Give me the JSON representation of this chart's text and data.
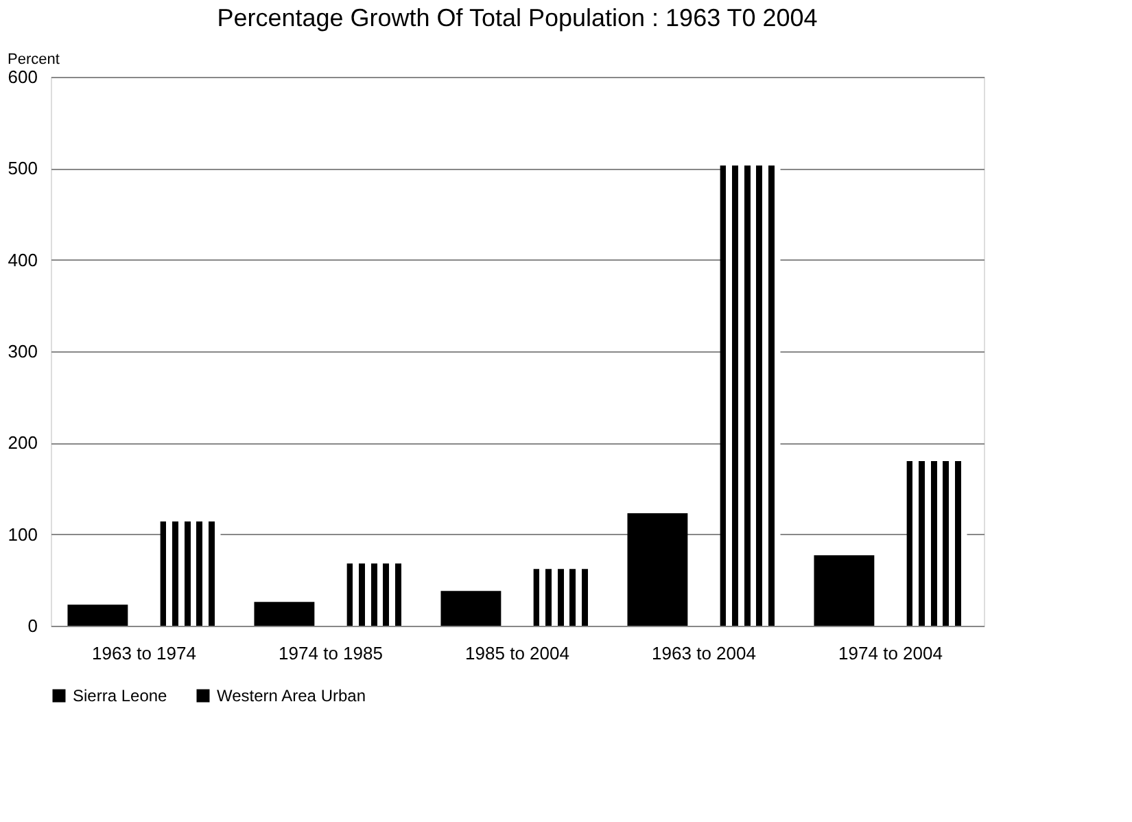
{
  "chart_data": {
    "type": "bar",
    "title": "Percentage Growth Of Total Population  :  1963 T0 2004",
    "ylabel": "Percent",
    "categories": [
      "1963 to 1974",
      "1974 to 1985",
      "1985 to 2004",
      "1963 to 2004",
      "1974 to 2004"
    ],
    "series": [
      {
        "name": "Sierra Leone",
        "color": "#000000",
        "values": [
          23,
          26,
          38,
          123,
          77
        ]
      },
      {
        "name": "Western Area Urban",
        "color": "#000000",
        "values": [
          114,
          68,
          62,
          503,
          180
        ]
      }
    ],
    "ylim": [
      0,
      600
    ],
    "yticks": [
      0,
      100,
      200,
      300,
      400,
      500,
      600
    ],
    "grid": "y",
    "legend": "bottom"
  }
}
